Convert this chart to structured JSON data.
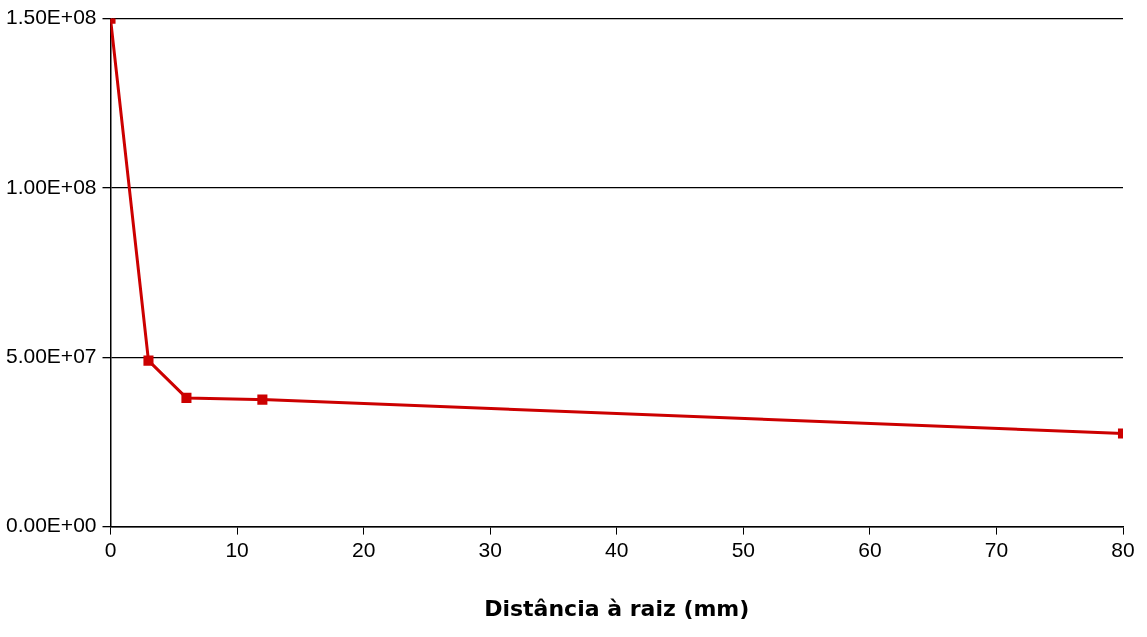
{
  "chart_data": {
    "type": "line",
    "xlabel": "Distância à raiz (mm)",
    "x": [
      0,
      3,
      6,
      12,
      80
    ],
    "series": [
      {
        "color": "#cc0000",
        "values": [
          150000000,
          49000000,
          38000000,
          37500000,
          27500000
        ]
      }
    ],
    "xlim": [
      0,
      80
    ],
    "xticks": [
      0,
      10,
      20,
      30,
      40,
      50,
      60,
      70,
      80
    ],
    "ylim": [
      0,
      150000000
    ],
    "yticks": [
      {
        "value": 0,
        "label": "0.00E+00"
      },
      {
        "value": 50000000,
        "label": "5.00E+07"
      },
      {
        "value": 100000000,
        "label": "1.00E+08"
      },
      {
        "value": 150000000,
        "label": "1.50E+08"
      }
    ],
    "grid": "y",
    "legend": false,
    "marker": "square",
    "line_style": "solid"
  }
}
